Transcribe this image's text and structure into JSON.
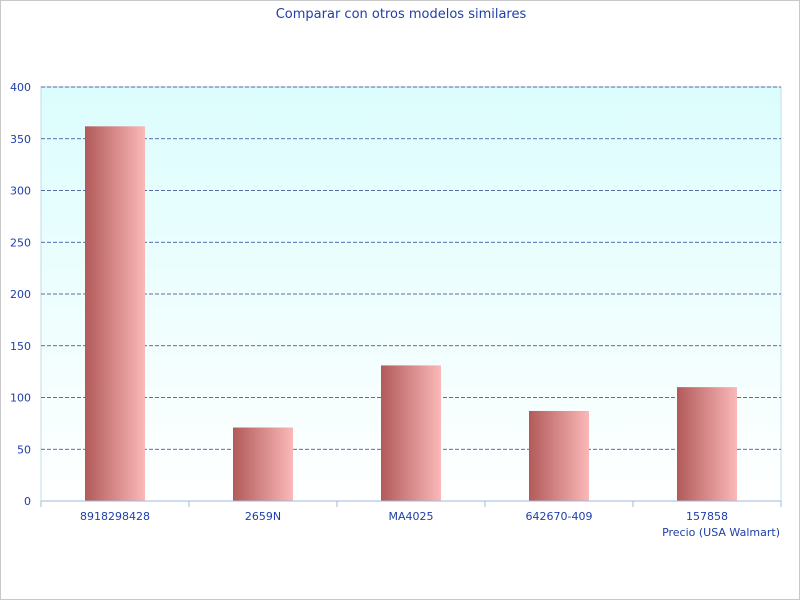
{
  "chart_data": {
    "type": "bar",
    "title": "Comparar con otros modelos similares",
    "xlabel": "Precio (USA Walmart)",
    "ylabel": "",
    "categories": [
      "8918298428",
      "2659N",
      "MA4025",
      "642670-409",
      "157858"
    ],
    "values": [
      362,
      71,
      131,
      87,
      110
    ],
    "ylim": [
      0,
      400
    ],
    "yticks": [
      0,
      50,
      100,
      150,
      200,
      250,
      300,
      350,
      400
    ],
    "grid": true,
    "legend": "none",
    "colors": {
      "text": "#1f3fa8",
      "grid": "#2a3f8f",
      "plot_top": "#dcfdfd",
      "plot_bottom": "#ffffff",
      "bar_dark": "#b25a5a",
      "bar_light": "#fbb8b8",
      "axis": "#9fb8d8"
    }
  }
}
